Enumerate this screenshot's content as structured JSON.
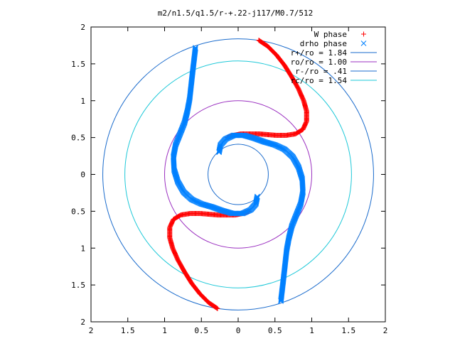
{
  "chart_data": {
    "type": "scatter",
    "title": "m2/n1.5/q1.5/r-+.22-j117/M0.7/512",
    "xlabel": "",
    "ylabel": "",
    "xlim": [
      -2,
      2
    ],
    "ylim": [
      -2,
      2
    ],
    "x_ticks": [
      {
        "value": -2,
        "label": "2"
      },
      {
        "value": -1.5,
        "label": "1.5"
      },
      {
        "value": -1,
        "label": "1"
      },
      {
        "value": -0.5,
        "label": "0.5"
      },
      {
        "value": 0,
        "label": "0"
      },
      {
        "value": 0.5,
        "label": "0.5"
      },
      {
        "value": 1,
        "label": "1"
      },
      {
        "value": 1.5,
        "label": "1.5"
      },
      {
        "value": 2,
        "label": "2"
      }
    ],
    "y_ticks": [
      {
        "value": 2,
        "label": "2"
      },
      {
        "value": 1.5,
        "label": "1.5"
      },
      {
        "value": 1,
        "label": "1"
      },
      {
        "value": 0.5,
        "label": "0.5"
      },
      {
        "value": 0,
        "label": "0"
      },
      {
        "value": -0.5,
        "label": "0.5"
      },
      {
        "value": -1,
        "label": "1"
      },
      {
        "value": -1.5,
        "label": "1.5"
      },
      {
        "value": -2,
        "label": "2"
      }
    ],
    "grid": false,
    "legend_position": "top-right",
    "series": [
      {
        "name": "W phase",
        "marker": "+",
        "color": "#ff0000",
        "arms": [
          [
            [
              0.28,
              1.82
            ],
            [
              0.4,
              1.74
            ],
            [
              0.52,
              1.62
            ],
            [
              0.63,
              1.48
            ],
            [
              0.73,
              1.32
            ],
            [
              0.82,
              1.16
            ],
            [
              0.89,
              1.0
            ],
            [
              0.93,
              0.86
            ],
            [
              0.93,
              0.72
            ],
            [
              0.88,
              0.61
            ],
            [
              0.78,
              0.55
            ],
            [
              0.65,
              0.53
            ],
            [
              0.52,
              0.53
            ],
            [
              0.4,
              0.54
            ],
            [
              0.28,
              0.55
            ],
            [
              0.16,
              0.55
            ],
            [
              0.04,
              0.55
            ],
            [
              -0.06,
              0.53
            ],
            [
              -0.15,
              0.5
            ]
          ],
          [
            [
              -0.28,
              -1.82
            ],
            [
              -0.4,
              -1.74
            ],
            [
              -0.52,
              -1.62
            ],
            [
              -0.63,
              -1.48
            ],
            [
              -0.73,
              -1.32
            ],
            [
              -0.82,
              -1.16
            ],
            [
              -0.89,
              -1.0
            ],
            [
              -0.93,
              -0.86
            ],
            [
              -0.93,
              -0.72
            ],
            [
              -0.88,
              -0.61
            ],
            [
              -0.78,
              -0.55
            ],
            [
              -0.65,
              -0.53
            ],
            [
              -0.52,
              -0.53
            ],
            [
              -0.4,
              -0.54
            ],
            [
              -0.28,
              -0.55
            ],
            [
              -0.16,
              -0.55
            ],
            [
              -0.04,
              -0.55
            ],
            [
              0.06,
              -0.53
            ],
            [
              0.15,
              -0.5
            ]
          ]
        ]
      },
      {
        "name": "drho phase",
        "marker": "x",
        "color": "#0080ff",
        "arms": [
          [
            [
              -0.58,
              1.72
            ],
            [
              -0.6,
              1.55
            ],
            [
              -0.62,
              1.38
            ],
            [
              -0.64,
              1.2
            ],
            [
              -0.66,
              1.02
            ],
            [
              -0.69,
              0.86
            ],
            [
              -0.73,
              0.7
            ],
            [
              -0.79,
              0.55
            ],
            [
              -0.85,
              0.4
            ],
            [
              -0.88,
              0.24
            ],
            [
              -0.87,
              0.06
            ],
            [
              -0.82,
              -0.1
            ],
            [
              -0.74,
              -0.24
            ],
            [
              -0.63,
              -0.34
            ],
            [
              -0.5,
              -0.4
            ],
            [
              -0.36,
              -0.44
            ],
            [
              -0.22,
              -0.49
            ],
            [
              -0.08,
              -0.53
            ],
            [
              0.06,
              -0.53
            ],
            [
              0.17,
              -0.48
            ],
            [
              0.24,
              -0.4
            ],
            [
              0.26,
              -0.3
            ]
          ],
          [
            [
              0.58,
              -1.72
            ],
            [
              0.6,
              -1.55
            ],
            [
              0.62,
              -1.38
            ],
            [
              0.64,
              -1.2
            ],
            [
              0.66,
              -1.02
            ],
            [
              0.69,
              -0.86
            ],
            [
              0.73,
              -0.7
            ],
            [
              0.79,
              -0.55
            ],
            [
              0.85,
              -0.4
            ],
            [
              0.88,
              -0.24
            ],
            [
              0.87,
              -0.06
            ],
            [
              0.82,
              0.1
            ],
            [
              0.74,
              0.24
            ],
            [
              0.63,
              0.34
            ],
            [
              0.5,
              0.4
            ],
            [
              0.36,
              0.44
            ],
            [
              0.22,
              0.49
            ],
            [
              0.08,
              0.53
            ],
            [
              -0.06,
              0.53
            ],
            [
              -0.17,
              0.48
            ],
            [
              -0.24,
              0.4
            ],
            [
              -0.26,
              0.3
            ]
          ]
        ]
      }
    ],
    "circles": [
      {
        "label": "r+/ro = 1.84",
        "radius": 1.84,
        "color": "#1a6bcc"
      },
      {
        "label": "ro/ro = 1.00",
        "radius": 1.0,
        "color": "#9b30c0"
      },
      {
        "label": "r-/ro = .41",
        "radius": 0.41,
        "color": "#1a6bcc"
      },
      {
        "label": "rc/ro = 1.54",
        "radius": 1.54,
        "color": "#1ec8d8"
      }
    ]
  }
}
